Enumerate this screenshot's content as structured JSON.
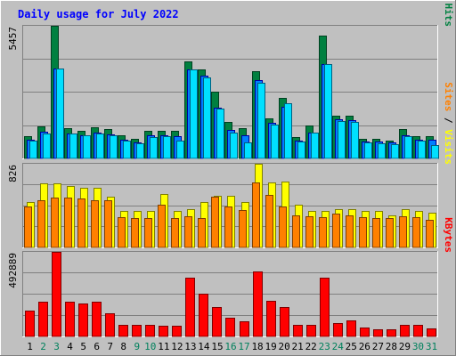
{
  "title": "Daily usage for July 2022",
  "colors": {
    "background": "#c0c0c0",
    "title_text": "#0000ff",
    "hits": "#008040",
    "files": "#0080ff",
    "pages": "#00e0ff",
    "visits": "#ffff00",
    "sites": "#ff8000",
    "kbytes": "#ff0000",
    "day_weekday": "#000000",
    "day_weekend": "#00805c"
  },
  "chart_data": [
    {
      "type": "bar",
      "panel": "hits-files-pages",
      "axis_max_label": "5457",
      "ylim": [
        0,
        5457
      ],
      "categories": [
        "1",
        "2",
        "3",
        "4",
        "5",
        "6",
        "7",
        "8",
        "9",
        "10",
        "11",
        "12",
        "13",
        "14",
        "15",
        "16",
        "17",
        "18",
        "19",
        "20",
        "21",
        "22",
        "23",
        "24",
        "25",
        "26",
        "27",
        "28",
        "29",
        "30",
        "31"
      ],
      "right_label": {
        "parts": [
          {
            "text": "Pages",
            "color": "#00e0ff"
          },
          {
            "text": " / ",
            "color": "#000000"
          },
          {
            "text": "Files",
            "color": "#0080ff"
          },
          {
            "text": " / ",
            "color": "#000000"
          },
          {
            "text": "Hits",
            "color": "#008040"
          }
        ]
      },
      "series": [
        {
          "name": "Hits",
          "values": [
            920,
            1320,
            5457,
            1240,
            1150,
            1300,
            1200,
            970,
            790,
            1120,
            1130,
            1120,
            4000,
            3680,
            2740,
            1490,
            1230,
            3600,
            1660,
            2500,
            890,
            1360,
            5060,
            1770,
            1760,
            820,
            790,
            750,
            1200,
            910,
            900
          ]
        },
        {
          "name": "Files",
          "values": [
            760,
            1100,
            3700,
            1020,
            960,
            1060,
            980,
            780,
            650,
            940,
            950,
            920,
            3650,
            3400,
            2100,
            1180,
            940,
            3220,
            1480,
            2120,
            720,
            1080,
            3900,
            1600,
            1560,
            700,
            680,
            660,
            960,
            760,
            760
          ]
        },
        {
          "name": "Pages",
          "values": [
            740,
            1040,
            3700,
            1010,
            940,
            1030,
            940,
            740,
            620,
            890,
            920,
            720,
            3650,
            3350,
            2050,
            1070,
            660,
            3120,
            1400,
            2280,
            690,
            1060,
            3900,
            1550,
            1510,
            650,
            640,
            600,
            910,
            740,
            540
          ]
        }
      ]
    },
    {
      "type": "bar",
      "panel": "visits-sites",
      "axis_max_label": "826",
      "ylim": [
        0,
        826
      ],
      "categories": [
        "1",
        "2",
        "3",
        "4",
        "5",
        "6",
        "7",
        "8",
        "9",
        "10",
        "11",
        "12",
        "13",
        "14",
        "15",
        "16",
        "17",
        "18",
        "19",
        "20",
        "21",
        "22",
        "23",
        "24",
        "25",
        "26",
        "27",
        "28",
        "29",
        "30",
        "31"
      ],
      "right_label": {
        "parts": [
          {
            "text": "Sites",
            "color": "#ff8000"
          },
          {
            "text": " / ",
            "color": "#000000"
          },
          {
            "text": "Visits",
            "color": "#ffff00"
          }
        ]
      },
      "series": [
        {
          "name": "Visits",
          "values": [
            450,
            630,
            630,
            610,
            590,
            590,
            500,
            360,
            360,
            360,
            530,
            360,
            380,
            450,
            510,
            510,
            450,
            826,
            640,
            650,
            420,
            360,
            360,
            380,
            380,
            360,
            360,
            320,
            380,
            360,
            340
          ]
        },
        {
          "name": "Sites",
          "values": [
            400,
            470,
            490,
            490,
            480,
            470,
            470,
            300,
            290,
            290,
            420,
            290,
            310,
            290,
            500,
            400,
            370,
            640,
            520,
            400,
            320,
            310,
            300,
            330,
            320,
            300,
            290,
            290,
            310,
            300,
            270
          ]
        }
      ]
    },
    {
      "type": "bar",
      "panel": "kbytes",
      "axis_max_label": "492889",
      "ylim": [
        0,
        492889
      ],
      "categories": [
        "1",
        "2",
        "3",
        "4",
        "5",
        "6",
        "7",
        "8",
        "9",
        "10",
        "11",
        "12",
        "13",
        "14",
        "15",
        "16",
        "17",
        "18",
        "19",
        "20",
        "21",
        "22",
        "23",
        "24",
        "25",
        "26",
        "27",
        "28",
        "29",
        "30",
        "31"
      ],
      "right_label": {
        "parts": [
          {
            "text": "KBytes",
            "color": "#ff0000"
          }
        ]
      },
      "series": [
        {
          "name": "KBytes",
          "values": [
            150000,
            200000,
            492889,
            200000,
            190000,
            200000,
            135000,
            70000,
            70000,
            70000,
            60000,
            60000,
            340000,
            250000,
            170000,
            110000,
            90000,
            380000,
            210000,
            170000,
            70000,
            65000,
            345000,
            80000,
            95000,
            50000,
            40000,
            40000,
            65000,
            65000,
            45000
          ]
        }
      ]
    }
  ],
  "x_axis": {
    "labels": [
      "1",
      "2",
      "3",
      "4",
      "5",
      "6",
      "7",
      "8",
      "9",
      "10",
      "11",
      "12",
      "13",
      "14",
      "15",
      "16",
      "17",
      "18",
      "19",
      "20",
      "21",
      "22",
      "23",
      "24",
      "25",
      "26",
      "27",
      "28",
      "29",
      "30",
      "31"
    ],
    "weekend": [
      false,
      true,
      true,
      false,
      false,
      false,
      false,
      false,
      true,
      true,
      false,
      false,
      false,
      false,
      false,
      true,
      true,
      false,
      false,
      false,
      false,
      false,
      true,
      true,
      false,
      false,
      false,
      false,
      false,
      true,
      true
    ]
  }
}
